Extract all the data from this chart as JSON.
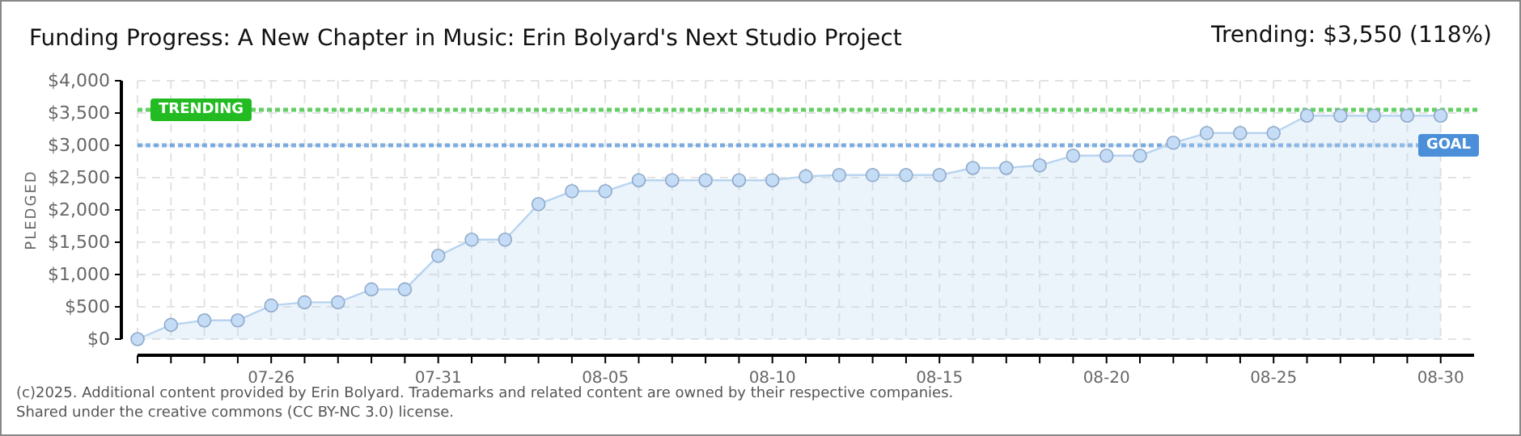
{
  "chart_data": {
    "type": "area",
    "title": "Funding Progress: A New Chapter in Music: Erin Bolyard's Next Studio Project",
    "subtitle": "Trending: $3,550 (118%)",
    "ylabel": "PLEDGED",
    "x": [
      "--07-22",
      "--07-23",
      "--07-24",
      "--07-25",
      "--07-26",
      "--07-27",
      "--07-28",
      "--07-29",
      "--07-30",
      "--07-31",
      "--08-01",
      "--08-02",
      "--08-03",
      "--08-04",
      "--08-05",
      "--08-06",
      "--08-07",
      "--08-08",
      "--08-09",
      "--08-10",
      "--08-11",
      "--08-12",
      "--08-13",
      "--08-14",
      "--08-15",
      "--08-16",
      "--08-17",
      "--08-18",
      "--08-19",
      "--08-20",
      "--08-21",
      "--08-22",
      "--08-23",
      "--08-24",
      "--08-25",
      "--08-26",
      "--08-27",
      "--08-28",
      "--08-29",
      "--08-30"
    ],
    "series": [
      {
        "color": "#b8d4f0",
        "values": [
          0,
          220,
          290,
          290,
          520,
          570,
          570,
          770,
          770,
          1290,
          1540,
          1540,
          2090,
          2290,
          2290,
          2460,
          2460,
          2460,
          2460,
          2460,
          2520,
          2540,
          2540,
          2540,
          2540,
          2650,
          2650,
          2690,
          2840,
          2840,
          2840,
          3040,
          3190,
          3190,
          3190,
          3460,
          3460,
          3460,
          3460,
          3460
        ]
      }
    ],
    "xlim": [
      "--07-22",
      "--08-31"
    ],
    "xticks": [
      {
        "value": "--07-22",
        "label": null
      },
      {
        "value": "--07-23",
        "label": null
      },
      {
        "value": "--07-24",
        "label": null
      },
      {
        "value": "--07-25",
        "label": null
      },
      {
        "value": "--07-26",
        "label": "07-26"
      },
      {
        "value": "--07-27",
        "label": null
      },
      {
        "value": "--07-28",
        "label": null
      },
      {
        "value": "--07-29",
        "label": null
      },
      {
        "value": "--07-30",
        "label": null
      },
      {
        "value": "--07-31",
        "label": "07-31"
      },
      {
        "value": "--08-01",
        "label": null
      },
      {
        "value": "--08-02",
        "label": null
      },
      {
        "value": "--08-03",
        "label": null
      },
      {
        "value": "--08-04",
        "label": null
      },
      {
        "value": "--08-05",
        "label": "08-05"
      },
      {
        "value": "--08-06",
        "label": null
      },
      {
        "value": "--08-07",
        "label": null
      },
      {
        "value": "--08-08",
        "label": null
      },
      {
        "value": "--08-09",
        "label": null
      },
      {
        "value": "--08-10",
        "label": "08-10"
      },
      {
        "value": "--08-11",
        "label": null
      },
      {
        "value": "--08-12",
        "label": null
      },
      {
        "value": "--08-13",
        "label": null
      },
      {
        "value": "--08-14",
        "label": null
      },
      {
        "value": "--08-15",
        "label": "08-15"
      },
      {
        "value": "--08-16",
        "label": null
      },
      {
        "value": "--08-17",
        "label": null
      },
      {
        "value": "--08-18",
        "label": null
      },
      {
        "value": "--08-19",
        "label": null
      },
      {
        "value": "--08-20",
        "label": "08-20"
      },
      {
        "value": "--08-21",
        "label": null
      },
      {
        "value": "--08-22",
        "label": null
      },
      {
        "value": "--08-23",
        "label": null
      },
      {
        "value": "--08-24",
        "label": null
      },
      {
        "value": "--08-25",
        "label": "08-25"
      },
      {
        "value": "--08-26",
        "label": null
      },
      {
        "value": "--08-27",
        "label": null
      },
      {
        "value": "--08-28",
        "label": null
      },
      {
        "value": "--08-29",
        "label": null
      },
      {
        "value": "--08-30",
        "label": "08-30"
      }
    ],
    "ylim": [
      0,
      4000
    ],
    "yticks": [
      {
        "value": 0,
        "label": "$0"
      },
      {
        "value": 500,
        "label": "$500"
      },
      {
        "value": 1000,
        "label": "$1,000"
      },
      {
        "value": 1500,
        "label": "$1,500"
      },
      {
        "value": 2000,
        "label": "$2,000"
      },
      {
        "value": 2500,
        "label": "$2,500"
      },
      {
        "value": 3000,
        "label": "$3,000"
      },
      {
        "value": 3500,
        "label": "$3,500"
      },
      {
        "value": 4000,
        "label": "$4,000"
      }
    ],
    "grid": true,
    "marker": "circle",
    "ref_lines": [
      {
        "axis": "y",
        "value": 3550,
        "label": "TRENDING",
        "color": "#22bb22",
        "line_style": "dotted"
      },
      {
        "axis": "y",
        "value": 3000,
        "label": "GOAL",
        "color": "#4a8fd8",
        "line_style": "dotted"
      }
    ],
    "annotations": [
      "(c)2025. Additional content provided by Erin Bolyard. Trademarks and related content are owned by their respective companies.",
      "Shared under the creative commons (CC BY-NC 3.0) license."
    ]
  }
}
